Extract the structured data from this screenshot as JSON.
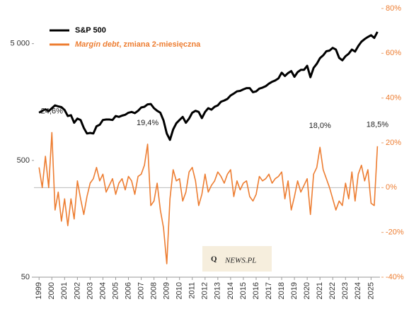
{
  "chart_data": {
    "type": "line",
    "x": [
      1999,
      1999.25,
      1999.5,
      1999.75,
      2000,
      2000.25,
      2000.5,
      2000.75,
      2001,
      2001.25,
      2001.5,
      2001.75,
      2002,
      2002.25,
      2002.5,
      2002.75,
      2003,
      2003.25,
      2003.5,
      2003.75,
      2004,
      2004.25,
      2004.5,
      2004.75,
      2005,
      2005.25,
      2005.5,
      2005.75,
      2006,
      2006.25,
      2006.5,
      2006.75,
      2007,
      2007.25,
      2007.5,
      2007.75,
      2008,
      2008.25,
      2008.5,
      2008.75,
      2009,
      2009.25,
      2009.5,
      2009.75,
      2010,
      2010.25,
      2010.5,
      2010.75,
      2011,
      2011.25,
      2011.5,
      2011.75,
      2012,
      2012.25,
      2012.5,
      2012.75,
      2013,
      2013.25,
      2013.5,
      2013.75,
      2014,
      2014.25,
      2014.5,
      2014.75,
      2015,
      2015.25,
      2015.5,
      2015.75,
      2016,
      2016.25,
      2016.5,
      2016.75,
      2017,
      2017.25,
      2017.5,
      2017.75,
      2018,
      2018.25,
      2018.5,
      2018.75,
      2019,
      2019.25,
      2019.5,
      2019.75,
      2020,
      2020.25,
      2020.5,
      2020.75,
      2021,
      2021.25,
      2021.5,
      2021.75,
      2022,
      2022.25,
      2022.5,
      2022.75,
      2023,
      2023.25,
      2023.5,
      2023.75,
      2024,
      2024.25,
      2024.5,
      2024.75,
      2025,
      2025.25,
      2025.5
    ],
    "series": [
      {
        "name": "S&P 500",
        "color": "#000000",
        "axis": "y",
        "values": [
          1280,
          1330,
          1370,
          1320,
          1400,
          1480,
          1450,
          1430,
          1350,
          1200,
          1220,
          1050,
          1140,
          1110,
          950,
          850,
          860,
          850,
          980,
          1010,
          1110,
          1120,
          1120,
          1110,
          1200,
          1180,
          1210,
          1230,
          1280,
          1300,
          1270,
          1330,
          1420,
          1440,
          1510,
          1520,
          1400,
          1330,
          1280,
          1100,
          850,
          750,
          920,
          1040,
          1110,
          1180,
          1050,
          1140,
          1280,
          1330,
          1300,
          1150,
          1300,
          1400,
          1360,
          1440,
          1480,
          1590,
          1630,
          1680,
          1800,
          1870,
          1950,
          1970,
          2030,
          2080,
          2080,
          1920,
          1950,
          2060,
          2100,
          2160,
          2270,
          2360,
          2420,
          2520,
          2820,
          2640,
          2800,
          2910,
          2600,
          2850,
          2980,
          2980,
          3230,
          2580,
          3100,
          3360,
          3750,
          3970,
          4300,
          4360,
          4600,
          4450,
          3780,
          3600,
          3900,
          4100,
          4450,
          4280,
          4770,
          5200,
          5470,
          5700,
          5900,
          5600,
          6300
        ]
      },
      {
        "name": "Margin debt, zmiana 2-miesięczna",
        "color": "#ed7d31",
        "axis": "y2",
        "values": [
          9,
          0,
          14,
          0,
          24.6,
          -10,
          -2,
          -15,
          -5,
          -17,
          -5,
          -14,
          3,
          -5,
          -12,
          -4,
          2,
          4,
          9,
          3,
          6,
          -2,
          1,
          4,
          -3,
          2,
          4,
          -1,
          5,
          3,
          -3,
          5,
          6,
          10,
          19.4,
          -8,
          -6,
          2,
          -10,
          -18,
          -34,
          -5,
          8,
          3,
          4,
          -6,
          -2,
          7,
          9,
          3,
          -8,
          -3,
          6,
          -2,
          1,
          3,
          7,
          5,
          2,
          6,
          8,
          -4,
          3,
          -1,
          2,
          3,
          -4,
          -6,
          -3,
          5,
          3,
          4,
          6,
          2,
          4,
          5,
          7,
          -5,
          3,
          -10,
          -4,
          3,
          -2,
          1,
          4,
          -12,
          6,
          9,
          18.0,
          8,
          4,
          0,
          -5,
          -10,
          -6,
          -8,
          2,
          -5,
          7,
          -6,
          6,
          10,
          3,
          8,
          -7,
          -8,
          18.5
        ]
      }
    ],
    "xlim": [
      1998.6,
      2025.7
    ],
    "xticks": [
      1999,
      2000,
      2001,
      2002,
      2003,
      2004,
      2005,
      2006,
      2007,
      2008,
      2009,
      2010,
      2011,
      2012,
      2013,
      2014,
      2015,
      2016,
      2017,
      2018,
      2019,
      2020,
      2021,
      2022,
      2023,
      2024,
      2025
    ],
    "ylim": [
      50,
      10000
    ],
    "y_log": true,
    "yticks": [
      50,
      500,
      {
        "value": 5000,
        "label": "5 000"
      }
    ],
    "y2lim": [
      -40,
      80
    ],
    "y2ticks": [
      {
        "value": -40,
        "label": "-40%"
      },
      {
        "value": -20,
        "label": "-20%"
      },
      {
        "value": 0,
        "label": "0%"
      },
      {
        "value": 20,
        "label": "20%"
      },
      {
        "value": 40,
        "label": "40%"
      },
      {
        "value": 60,
        "label": "60%"
      },
      {
        "value": 80,
        "label": "80%"
      }
    ],
    "y2_zero_line": true,
    "annotations": [
      {
        "text": "24,6%",
        "x": 2000,
        "value": 24.6
      },
      {
        "text": "19,4%",
        "x": 2007.5,
        "value": 19.4
      },
      {
        "text": "18,0%",
        "x": 2021,
        "value": 18.0
      },
      {
        "text": "18,5%",
        "x": 2025.5,
        "value": 18.5
      }
    ],
    "logo": {
      "initial": "Q",
      "rest": "NEWS.PL"
    }
  }
}
